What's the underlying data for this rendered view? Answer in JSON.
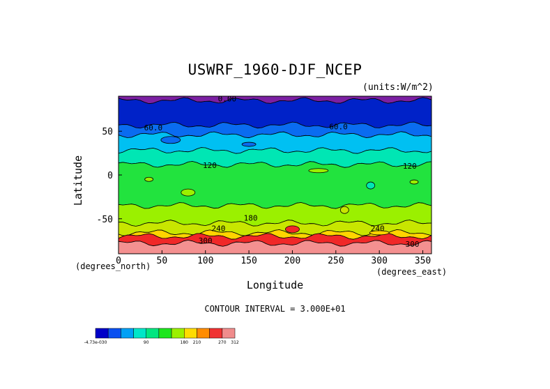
{
  "chart_data": {
    "type": "heatmap",
    "title": "USWRF_1960-DJF_NCEP",
    "units_label": "(units:W/m^2)",
    "xlabel": "Longitude",
    "ylabel": "Latitude",
    "x_units_label": "(degrees_north)",
    "y_units_label": "(degrees_east)",
    "xlim": [
      0,
      360
    ],
    "ylim": [
      -90,
      90
    ],
    "xticks": [
      "0",
      "50",
      "100",
      "150",
      "200",
      "250",
      "300",
      "350"
    ],
    "xtick_values": [
      0,
      50,
      100,
      150,
      200,
      250,
      300,
      350
    ],
    "yticks": [
      "50",
      "0",
      "-50"
    ],
    "ytick_values": [
      50,
      0,
      -50
    ],
    "contour_interval_text": "CONTOUR INTERVAL = 3.000E+01",
    "contour_labels": [
      {
        "text": "0.00",
        "lon": 125,
        "lat": 84
      },
      {
        "text": "60.0",
        "lon": 40,
        "lat": 51
      },
      {
        "text": "60.0",
        "lon": 253,
        "lat": 52
      },
      {
        "text": "120",
        "lon": 105,
        "lat": 8
      },
      {
        "text": "120",
        "lon": 335,
        "lat": 7
      },
      {
        "text": "180",
        "lon": 152,
        "lat": -52
      },
      {
        "text": "240",
        "lon": 115,
        "lat": -64
      },
      {
        "text": "240",
        "lon": 298,
        "lat": -64
      },
      {
        "text": "300",
        "lon": 100,
        "lat": -78
      },
      {
        "text": "300",
        "lon": 338,
        "lat": -82
      }
    ],
    "bands": [
      {
        "lat_top": 90,
        "lat_bottom": 85,
        "value": 0,
        "color": "#7b1fa2"
      },
      {
        "lat_top": 85,
        "lat_bottom": 57,
        "value": 15,
        "color": "#0022c8"
      },
      {
        "lat_top": 57,
        "lat_bottom": 46,
        "value": 45,
        "color": "#0a6cf0"
      },
      {
        "lat_top": 46,
        "lat_bottom": 28,
        "value": 75,
        "color": "#00c0f2"
      },
      {
        "lat_top": 28,
        "lat_bottom": 12,
        "value": 105,
        "color": "#00e6b4"
      },
      {
        "lat_top": 12,
        "lat_bottom": -35,
        "value": 135,
        "color": "#22e33e"
      },
      {
        "lat_top": -35,
        "lat_bottom": -55,
        "value": 165,
        "color": "#9bf000"
      },
      {
        "lat_top": -55,
        "lat_bottom": -66,
        "value": 195,
        "color": "#c8e600"
      },
      {
        "lat_top": -66,
        "lat_bottom": -70,
        "value": 225,
        "color": "#ffd400"
      },
      {
        "lat_top": -70,
        "lat_bottom": -78,
        "value": 285,
        "color": "#f02828"
      },
      {
        "lat_top": -78,
        "lat_bottom": -90,
        "value": 312,
        "color": "#f49090"
      }
    ],
    "colorbar": {
      "colors": [
        "#0000c8",
        "#0a50f0",
        "#00a0f5",
        "#00e6c8",
        "#00e680",
        "#1ee61e",
        "#9bf000",
        "#ffdc00",
        "#ff8c00",
        "#f03232",
        "#f08c8c"
      ],
      "labels": [
        "-4.73e-030",
        "90",
        "180",
        "210",
        "270",
        "312"
      ]
    }
  }
}
